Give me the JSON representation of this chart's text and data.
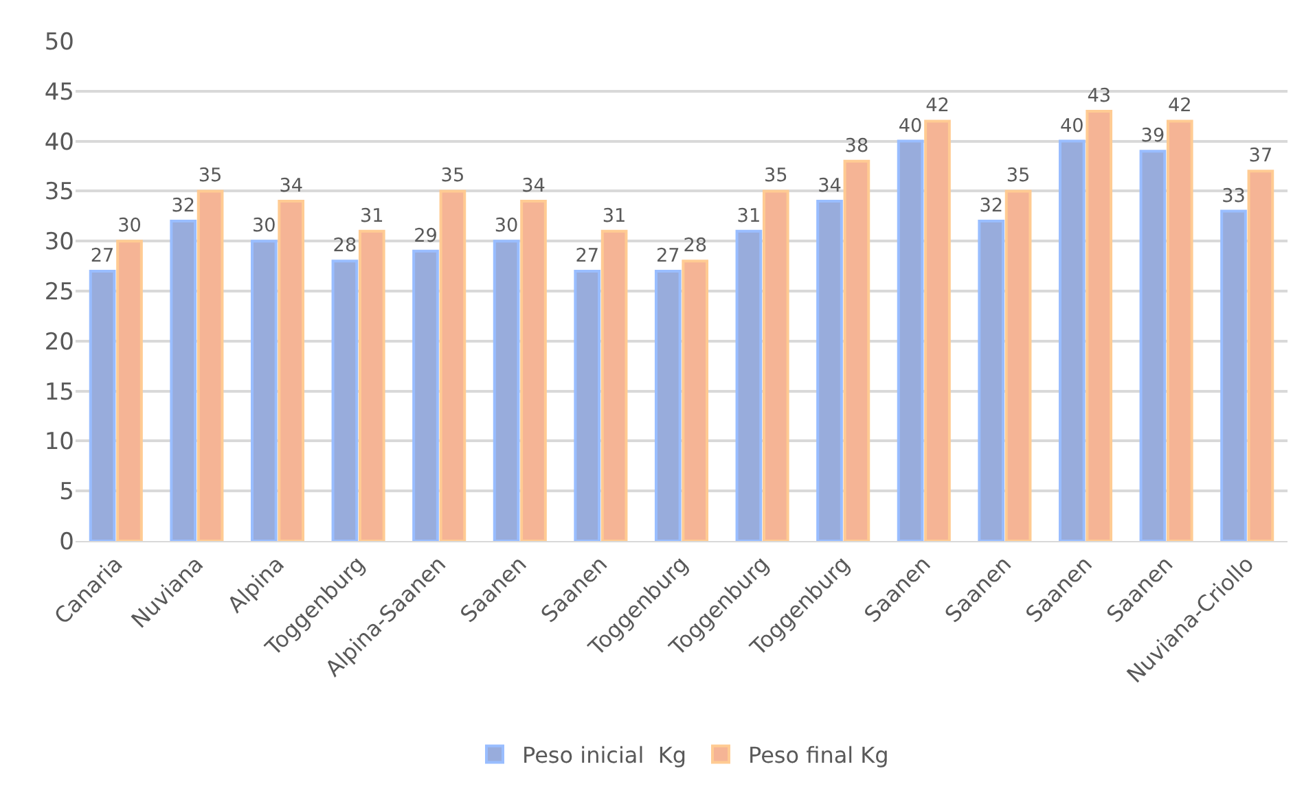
{
  "chart_data": {
    "type": "bar",
    "categories": [
      "Canaria",
      "Nuviana",
      "Alpina",
      "Toggenburg",
      "Alpina-Saanen",
      "Saanen",
      "Saanen",
      "Toggenburg",
      "Toggenburg",
      "Toggenburg",
      "Saanen",
      "Saanen",
      "Saanen",
      "Saanen",
      "Nuviana-Criollo"
    ],
    "series": [
      {
        "name": "Peso inicial  Kg",
        "color": "#98acdc",
        "values": [
          27,
          32,
          30,
          28,
          29,
          30,
          27,
          27,
          31,
          34,
          40,
          32,
          40,
          39,
          33
        ]
      },
      {
        "name": "Peso final Kg",
        "color": "#f5b495",
        "values": [
          30,
          35,
          34,
          31,
          35,
          34,
          31,
          28,
          35,
          38,
          42,
          35,
          43,
          42,
          37
        ]
      }
    ],
    "ylim": [
      0,
      50
    ],
    "yticks": [
      0,
      5,
      10,
      15,
      20,
      25,
      30,
      35,
      40,
      45,
      50
    ],
    "grid": "y",
    "legend": "bottom",
    "data_labels": true
  }
}
